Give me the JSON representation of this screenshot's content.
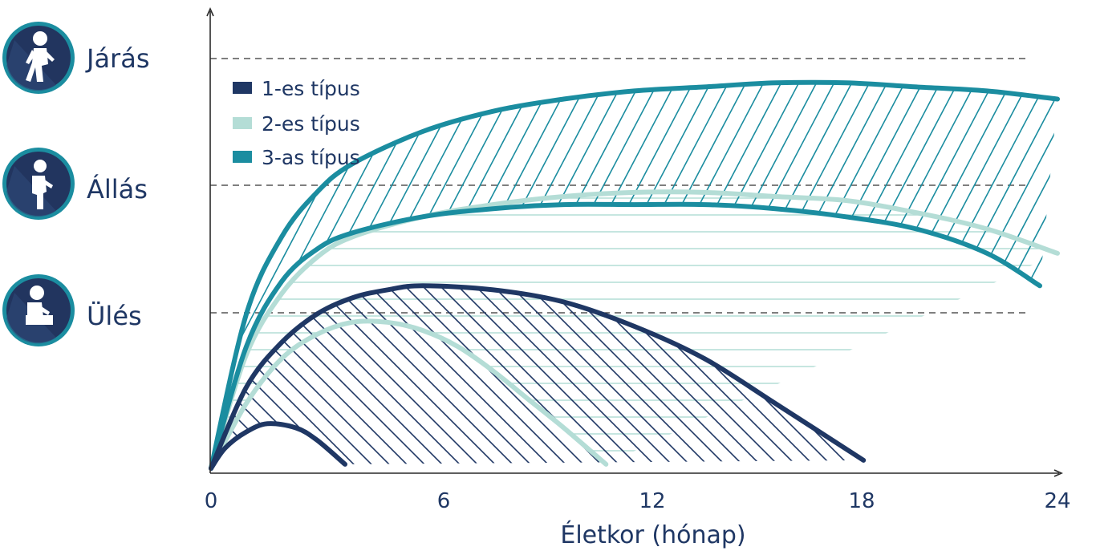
{
  "chart_data": {
    "type": "area",
    "xlabel": "Életkor (hónap)",
    "x_ticks": [
      0,
      6,
      12,
      18,
      24
    ],
    "xlim": [
      0,
      24
    ],
    "milestones": [
      "Járás",
      "Állás",
      "Ülés"
    ],
    "milestone_icons": [
      "walking-child-icon",
      "standing-child-icon",
      "sitting-child-icon"
    ],
    "legend": [
      "1-es típus",
      "2-es típus",
      "3-as típus"
    ],
    "legend_position": "top-left",
    "grid": "dashed horizontal at milestones",
    "colors": {
      "type1": "#1f3764",
      "type2": "#b4ddd6",
      "type3": "#1b8da0",
      "axis": "#2a2a2a",
      "text": "#1f3764"
    },
    "series": [
      {
        "name": "1-es típus",
        "band_style": "diagonal-hatch",
        "curves": [
          {
            "x": [
              0,
              0.4,
              1,
              1.6,
              2.4,
              3,
              3.8
            ],
            "y": [
              0,
              0.05,
              0.09,
              0.11,
              0.1,
              0.07,
              0.01
            ]
          },
          {
            "x": [
              0,
              1,
              2,
              3,
              4,
              5,
              6,
              8,
              10,
              12,
              14,
              16,
              18.5
            ],
            "y": [
              0,
              0.2,
              0.31,
              0.38,
              0.42,
              0.44,
              0.45,
              0.44,
              0.41,
              0.35,
              0.27,
              0.16,
              0.02
            ]
          }
        ]
      },
      {
        "name": "2-es típus",
        "band_style": "horizontal-hatch",
        "curves": [
          {
            "x": [
              0,
              1,
              2,
              3,
              4,
              5,
              6,
              7,
              8,
              9,
              10,
              11.2
            ],
            "y": [
              0,
              0.16,
              0.27,
              0.33,
              0.36,
              0.36,
              0.34,
              0.3,
              0.24,
              0.17,
              0.1,
              0.01
            ]
          },
          {
            "x": [
              0,
              1,
              2,
              3,
              4,
              6,
              8,
              10,
              12,
              14,
              16,
              18,
              20,
              22,
              24
            ],
            "y": [
              0,
              0.28,
              0.43,
              0.52,
              0.57,
              0.62,
              0.65,
              0.67,
              0.68,
              0.68,
              0.67,
              0.66,
              0.63,
              0.59,
              0.53
            ]
          }
        ]
      },
      {
        "name": "3-as típus",
        "band_style": "diagonal-hatch",
        "curves": [
          {
            "x": [
              0,
              1,
              2,
              3,
              4,
              6,
              8,
              10,
              12,
              14,
              16,
              18,
              20,
              22,
              23.5
            ],
            "y": [
              0,
              0.3,
              0.46,
              0.54,
              0.58,
              0.62,
              0.64,
              0.65,
              0.65,
              0.65,
              0.64,
              0.62,
              0.59,
              0.53,
              0.45
            ]
          },
          {
            "x": [
              0,
              1,
              2,
              3,
              4,
              6,
              8,
              10,
              12,
              14,
              16,
              18,
              20,
              22,
              24
            ],
            "y": [
              0,
              0.38,
              0.57,
              0.68,
              0.75,
              0.83,
              0.88,
              0.91,
              0.93,
              0.94,
              0.95,
              0.95,
              0.94,
              0.93,
              0.91
            ]
          }
        ]
      }
    ]
  }
}
